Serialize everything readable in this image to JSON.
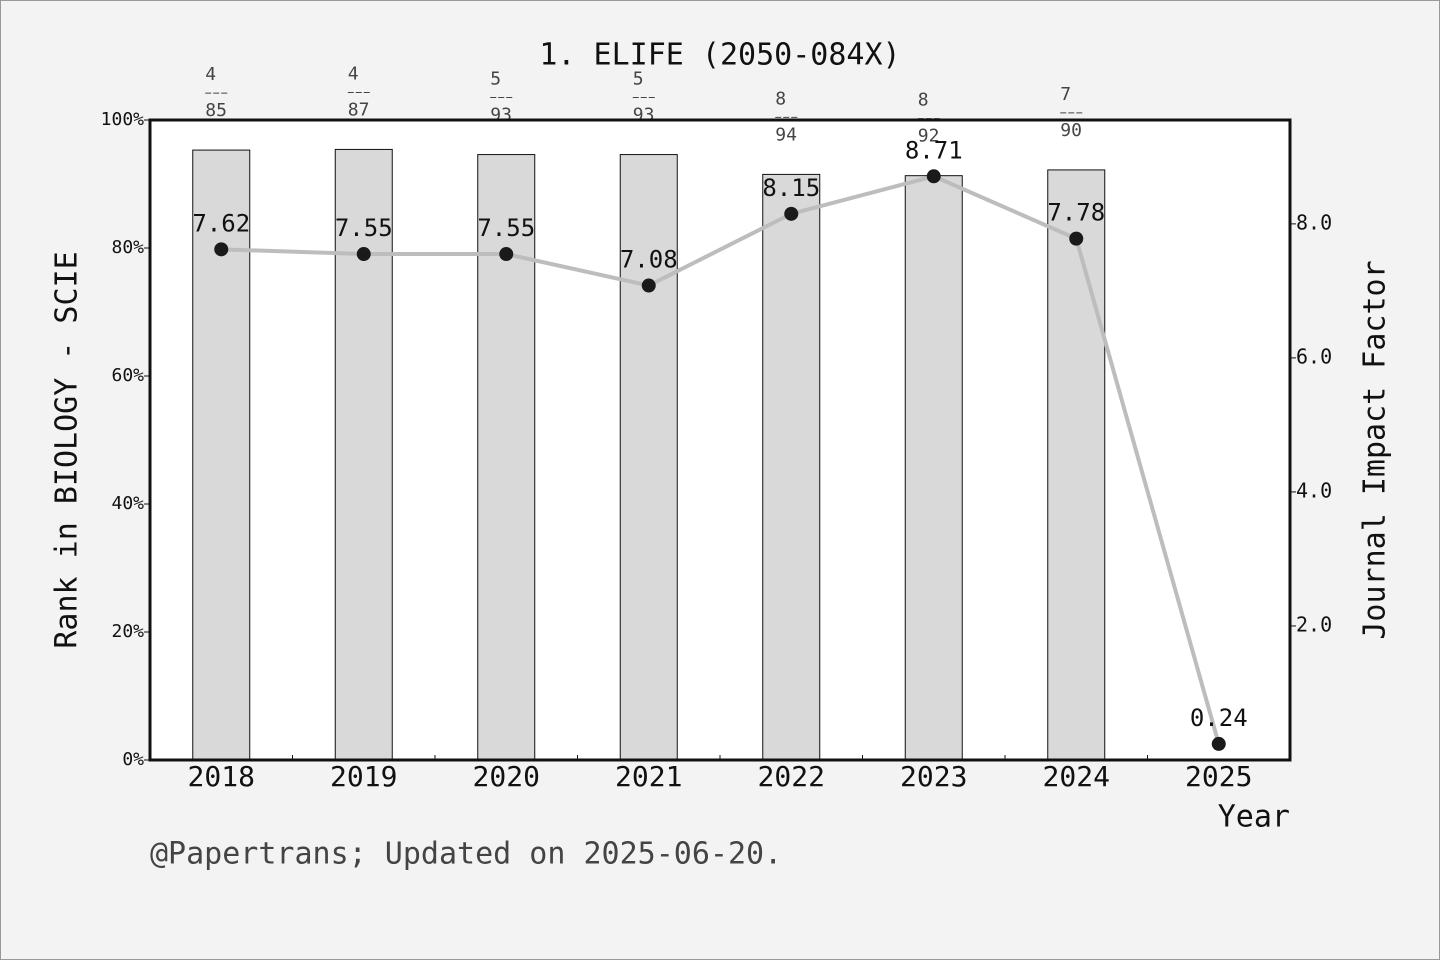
{
  "chart_data": {
    "type": "bar",
    "title": "1. ELIFE (2050-084X)",
    "y_label": "Rank in BIOLOGY - SCIE",
    "y2_label": "Journal Impact Factor",
    "x_label": "Year",
    "footnote": "@Papertrans; Updated on 2025-06-20.",
    "categories": [
      "2018",
      "2019",
      "2020",
      "2021",
      "2022",
      "2023",
      "2024",
      "2025"
    ],
    "series": [
      {
        "type": "bar",
        "color": "#d9d9d9",
        "values": [
          95.3,
          95.4,
          94.6,
          94.6,
          91.5,
          91.3,
          92.2,
          null
        ],
        "ranks": [
          4,
          4,
          5,
          5,
          8,
          8,
          7,
          null
        ],
        "totals": [
          85,
          87,
          93,
          93,
          94,
          92,
          90,
          null
        ]
      },
      {
        "type": "line",
        "axis": "y2",
        "color": "#bdbdbd",
        "marker_color": "#1a1a1a",
        "values": [
          7.62,
          7.55,
          7.55,
          7.08,
          8.15,
          8.71,
          7.78,
          0.24
        ]
      }
    ],
    "ylim": [
      0,
      100
    ],
    "yticks": [
      {
        "value": 0,
        "label": "0%"
      },
      {
        "value": 20,
        "label": "20%"
      },
      {
        "value": 40,
        "label": "40%"
      },
      {
        "value": 60,
        "label": "60%"
      },
      {
        "value": 80,
        "label": "80%"
      },
      {
        "value": 100,
        "label": "100%"
      }
    ],
    "y2lim": [
      0,
      9.55
    ],
    "y2ticks": [
      {
        "value": 2,
        "label": "2.0"
      },
      {
        "value": 4,
        "label": "4.0"
      },
      {
        "value": 6,
        "label": "6.0"
      },
      {
        "value": 8,
        "label": "8.0"
      }
    ]
  }
}
